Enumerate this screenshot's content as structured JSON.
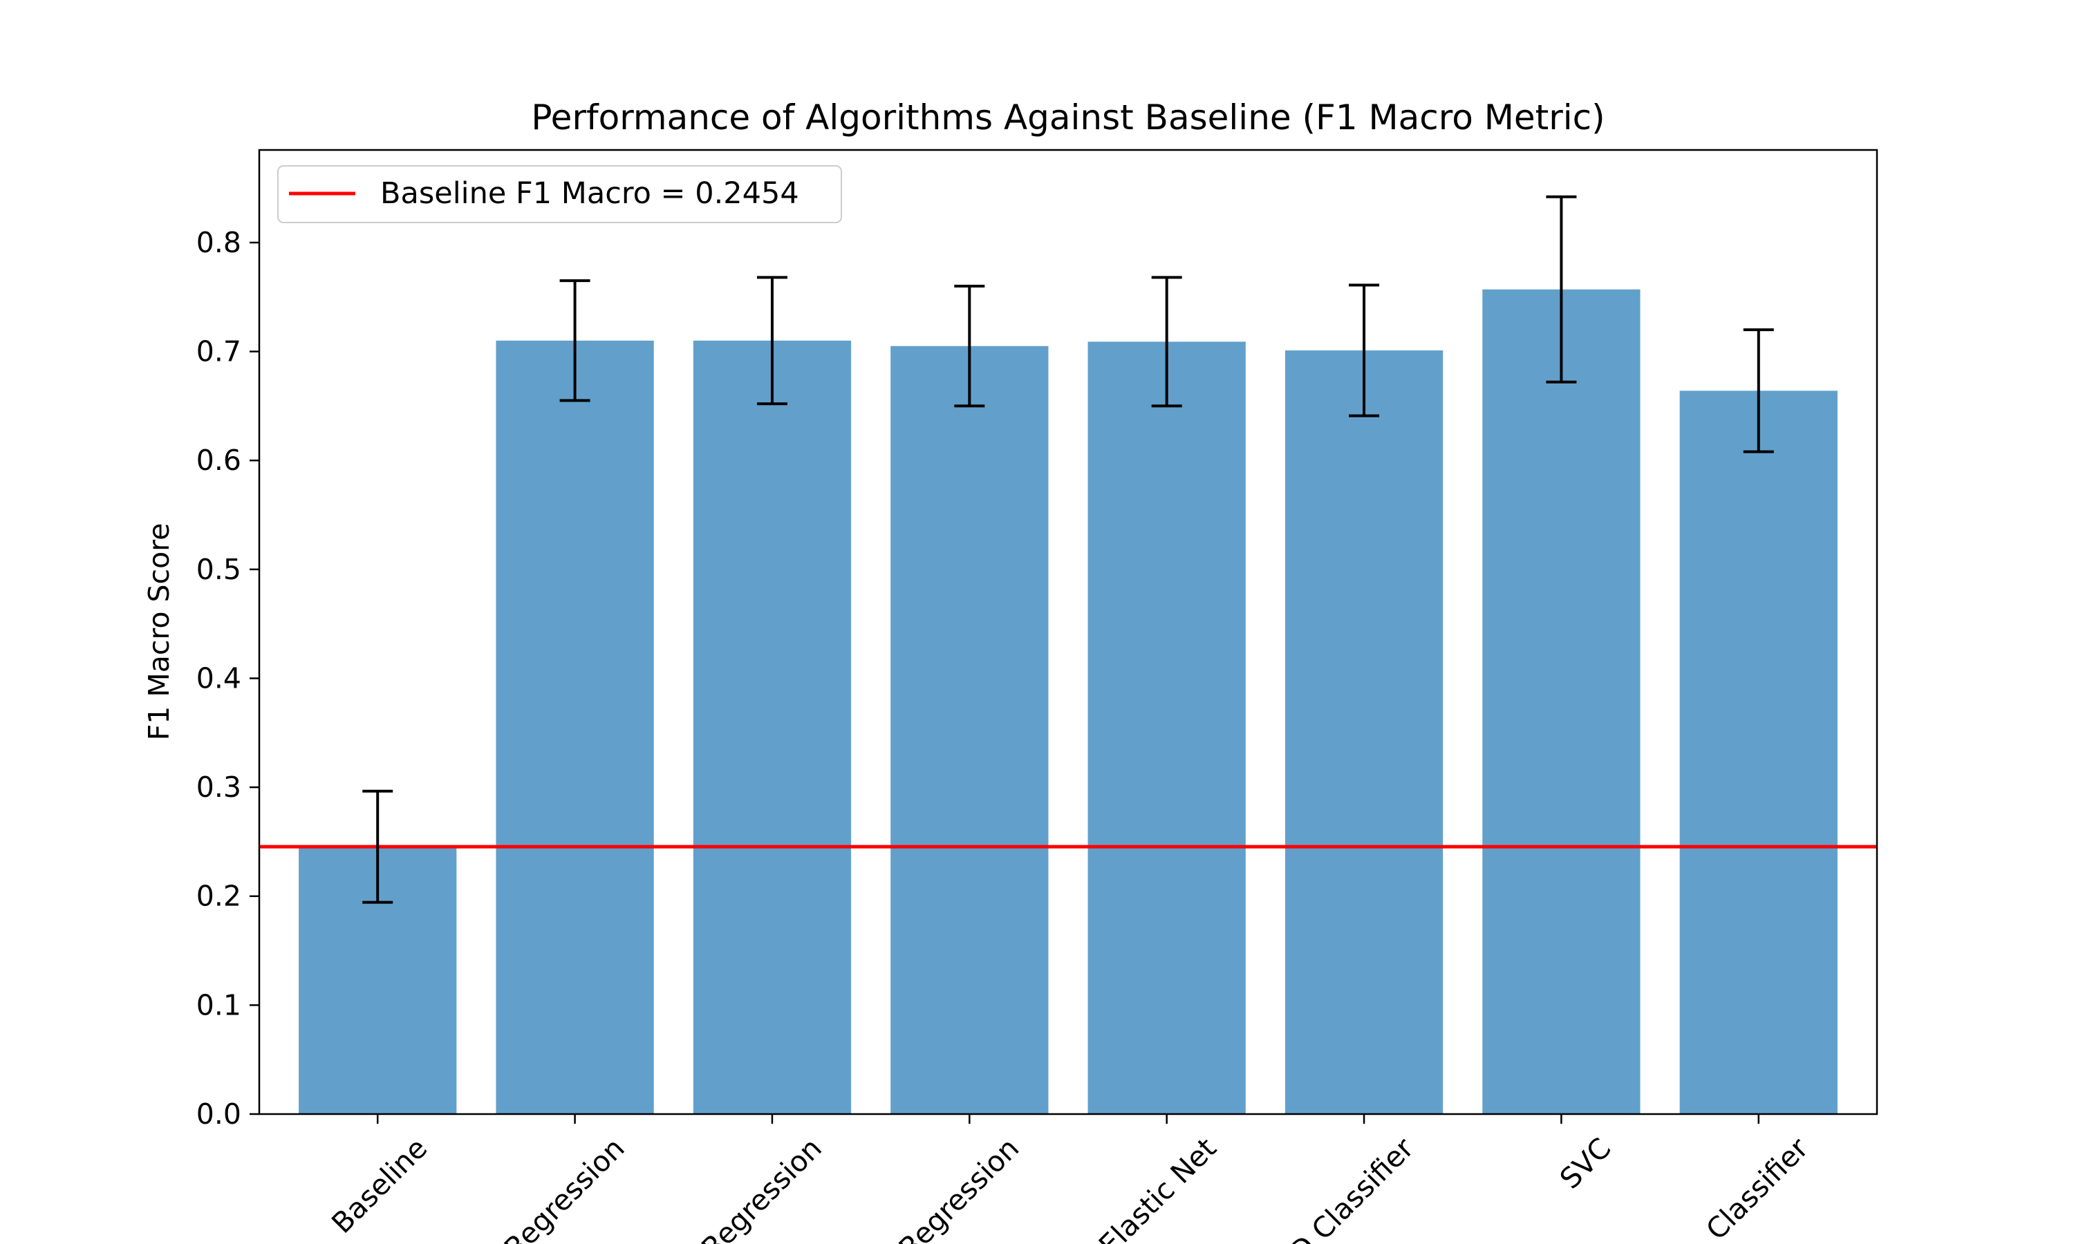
{
  "chart_data": {
    "type": "bar",
    "title": "Performance of Algorithms Against Baseline (F1 Macro Metric)",
    "xlabel": "",
    "ylabel": "F1 Macro Score",
    "ylim": [
      0,
      0.885
    ],
    "yticks": [
      "0.0",
      "0.1",
      "0.2",
      "0.3",
      "0.4",
      "0.5",
      "0.6",
      "0.7",
      "0.8"
    ],
    "categories": [
      "Baseline",
      "Logistic Regression",
      "Ridge Regression",
      "Lasso Regression",
      "Elastic Net",
      "SGD Classifier",
      "SVC",
      "Random Forest Classifier"
    ],
    "category_visible_text": [
      "Baseline",
      "Regression",
      "Regression",
      "Regression",
      "Elastic Net",
      "SGD Classifier",
      "SVC",
      "Classifier"
    ],
    "values": [
      0.2454,
      0.71,
      0.71,
      0.705,
      0.709,
      0.701,
      0.757,
      0.664
    ],
    "errors": [
      0.051,
      0.055,
      0.058,
      0.055,
      0.059,
      0.06,
      0.085,
      0.056
    ],
    "baseline_value": 0.2454,
    "legend": {
      "location": "upper-left",
      "label": "Baseline F1 Macro = 0.2454"
    },
    "colors": {
      "bar": "#62a0cb",
      "baseline_line": "#ff0000",
      "error_bar": "#000000",
      "axes": "#000000",
      "legend_border": "#cccccc"
    }
  }
}
